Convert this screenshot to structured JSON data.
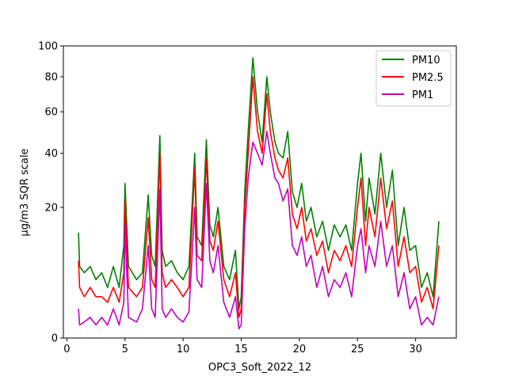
{
  "chart_data": {
    "type": "line",
    "title": "",
    "xlabel": "OPC3_Soft_2022_12",
    "ylabel": "µg/m3 SQR scale",
    "y_scale": "sqrt",
    "xlim": [
      -0.3,
      33.5
    ],
    "ylim": [
      0,
      100
    ],
    "x_ticks": [
      0,
      5,
      10,
      15,
      20,
      25,
      30
    ],
    "y_ticks": [
      0,
      20,
      40,
      60,
      80,
      100
    ],
    "grid": false,
    "legend_position": "top-right",
    "x": [
      1.0,
      1.1,
      1.5,
      2.0,
      2.5,
      3.0,
      3.5,
      4.0,
      4.5,
      4.9,
      5.0,
      5.3,
      6.0,
      6.5,
      7.0,
      7.3,
      7.6,
      8.0,
      8.2,
      8.5,
      9.0,
      9.5,
      10.0,
      10.5,
      11.0,
      11.2,
      11.6,
      12.0,
      12.3,
      12.6,
      13.0,
      13.5,
      14.0,
      14.5,
      14.8,
      15.0,
      15.3,
      15.6,
      16.0,
      16.4,
      16.8,
      17.2,
      17.5,
      17.9,
      18.2,
      18.6,
      19.0,
      19.4,
      19.8,
      20.2,
      20.6,
      21.0,
      21.5,
      22.0,
      22.5,
      23.0,
      23.5,
      24.0,
      24.5,
      25.0,
      25.3,
      25.7,
      26.0,
      26.5,
      27.0,
      27.5,
      28.0,
      28.5,
      29.0,
      29.5,
      30.0,
      30.5,
      31.0,
      31.5,
      32.0
    ],
    "series": [
      {
        "name": "PM10",
        "color": "#008000",
        "values": [
          13,
          6,
          5,
          6,
          4,
          5,
          3,
          6,
          3,
          10,
          28,
          6,
          4,
          5,
          24,
          8,
          6,
          48,
          9,
          6,
          7,
          5,
          4,
          6,
          40,
          12,
          10,
          46,
          15,
          12,
          20,
          6,
          4,
          9,
          1,
          2,
          25,
          50,
          92,
          60,
          45,
          80,
          60,
          45,
          40,
          38,
          50,
          25,
          20,
          28,
          16,
          20,
          12,
          16,
          9,
          15,
          12,
          15,
          9,
          28,
          40,
          16,
          30,
          18,
          40,
          20,
          33,
          10,
          20,
          9,
          10,
          3,
          5,
          2,
          16
        ]
      },
      {
        "name": "PM2.5",
        "color": "#ff0000",
        "values": [
          7,
          3,
          2,
          3,
          2,
          2,
          1.5,
          3,
          1.5,
          5,
          22,
          3,
          2,
          3,
          17,
          4,
          3,
          40,
          5,
          3,
          4,
          3,
          2,
          3,
          34,
          8,
          7,
          38,
          11,
          9,
          16,
          4,
          2,
          5,
          0.5,
          1,
          20,
          40,
          80,
          50,
          40,
          70,
          50,
          38,
          33,
          30,
          38,
          18,
          14,
          20,
          11,
          14,
          8,
          11,
          5,
          9,
          7,
          10,
          6,
          20,
          30,
          10,
          20,
          12,
          30,
          14,
          22,
          6,
          12,
          5,
          6,
          1.5,
          3,
          1,
          10
        ]
      },
      {
        "name": "PM1",
        "color": "#bf00bf",
        "values": [
          1,
          0.2,
          0.3,
          0.5,
          0.2,
          0.5,
          0.2,
          1,
          0.2,
          1.5,
          15,
          0.5,
          0.3,
          1,
          10,
          1,
          0.5,
          26,
          1,
          0.5,
          1,
          0.5,
          0.3,
          0.8,
          20,
          4,
          3,
          28,
          7,
          5,
          10,
          1.5,
          0.5,
          2,
          0.1,
          0.2,
          14,
          30,
          45,
          40,
          35,
          50,
          40,
          30,
          28,
          22,
          26,
          10,
          8,
          12,
          6,
          8,
          3,
          6,
          2,
          4,
          3,
          5,
          2,
          10,
          14,
          5,
          10,
          6,
          16,
          6,
          10,
          2,
          5,
          1,
          2,
          0.2,
          0.5,
          0.2,
          2
        ]
      }
    ]
  }
}
